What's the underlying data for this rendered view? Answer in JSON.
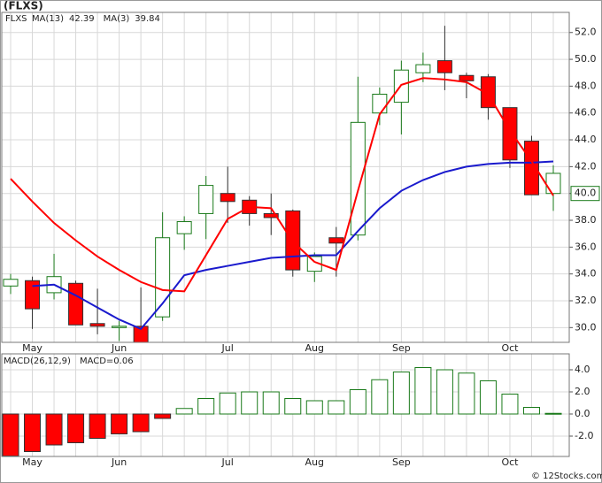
{
  "chart_data": [
    {
      "type": "candlestick",
      "title": "(FLXS)",
      "name": "FLXS",
      "categories": [
        null,
        "May",
        null,
        null,
        null,
        "Jun",
        null,
        null,
        null,
        null,
        "Jul",
        null,
        null,
        null,
        "Aug",
        null,
        null,
        null,
        "Sep",
        null,
        null,
        null,
        null,
        "Oct",
        null,
        null
      ],
      "open": [
        33.1,
        33.5,
        32.6,
        33.3,
        30.3,
        30.0,
        30.1,
        30.8,
        37.0,
        38.5,
        40.0,
        39.5,
        38.5,
        38.7,
        34.2,
        36.7,
        36.9,
        46.0,
        46.8,
        49.0,
        49.9,
        48.8,
        48.7,
        46.4,
        43.9,
        40.0
      ],
      "high": [
        34.0,
        33.8,
        35.5,
        33.5,
        32.9,
        30.5,
        33.0,
        38.6,
        38.3,
        41.3,
        42.0,
        39.8,
        40.0,
        38.8,
        35.6,
        37.5,
        48.7,
        47.9,
        49.9,
        50.5,
        52.5,
        49.0,
        48.9,
        46.4,
        44.3,
        42.1
      ],
      "low": [
        32.5,
        29.9,
        32.1,
        30.2,
        29.5,
        29.0,
        28.9,
        30.5,
        35.8,
        36.6,
        37.8,
        37.6,
        36.9,
        33.8,
        33.4,
        33.8,
        36.5,
        45.1,
        44.4,
        48.3,
        47.7,
        47.1,
        45.5,
        41.9,
        39.9,
        38.7
      ],
      "close": [
        33.6,
        31.4,
        33.8,
        30.2,
        30.1,
        30.1,
        28.9,
        36.7,
        37.9,
        40.6,
        39.4,
        38.5,
        38.2,
        34.3,
        35.3,
        36.3,
        45.3,
        47.4,
        49.2,
        49.6,
        49.0,
        48.4,
        46.4,
        42.5,
        39.9,
        41.5
      ],
      "up_color": "#1a7a1a",
      "down_color": "#ff0000",
      "series": [
        {
          "name": "MA(13)",
          "color": "#1a1acd",
          "value_label": "42.39",
          "values": [
            null,
            33.1,
            33.2,
            32.4,
            31.5,
            30.6,
            29.9,
            31.8,
            33.9,
            34.3,
            34.6,
            34.9,
            35.2,
            35.3,
            35.4,
            35.4,
            37.2,
            38.9,
            40.2,
            41.0,
            41.6,
            42.0,
            42.2,
            42.3,
            42.3,
            42.39
          ]
        },
        {
          "name": "MA(3)",
          "color": "#ff0000",
          "value_label": "39.84",
          "values": [
            41.1,
            39.4,
            37.8,
            36.5,
            35.3,
            34.3,
            33.4,
            32.8,
            32.7,
            35.4,
            38.1,
            39.0,
            38.9,
            36.4,
            34.9,
            34.3,
            40.2,
            45.9,
            48.1,
            48.6,
            48.5,
            48.3,
            47.4,
            44.7,
            42.4,
            39.84
          ]
        }
      ],
      "price_tag": {
        "value": 40.0,
        "label": "40.0"
      },
      "ylim": [
        28.9,
        53.5
      ],
      "yticks": [
        {
          "value": 30,
          "label": "30.0"
        },
        {
          "value": 32,
          "label": "32.0"
        },
        {
          "value": 34,
          "label": "34.0"
        },
        {
          "value": 36,
          "label": "36.0"
        },
        {
          "value": 38,
          "label": "38.0"
        },
        {
          "value": 40,
          "label": "40.0"
        },
        {
          "value": 42,
          "label": "42.0"
        },
        {
          "value": 44,
          "label": "44.0"
        },
        {
          "value": 46,
          "label": "46.0"
        },
        {
          "value": 48,
          "label": "48.0"
        },
        {
          "value": 50,
          "label": "50.0"
        },
        {
          "value": 52,
          "label": "52.0"
        }
      ],
      "grid": true
    },
    {
      "type": "bar",
      "name": "MACD(26,12,9)",
      "legend_label": "MACD=0.06",
      "categories": [
        null,
        "May",
        null,
        null,
        null,
        "Jun",
        null,
        null,
        null,
        null,
        "Jul",
        null,
        null,
        null,
        "Aug",
        null,
        null,
        null,
        "Sep",
        null,
        null,
        null,
        null,
        "Oct",
        null,
        null
      ],
      "values": [
        -3.8,
        -3.4,
        -2.8,
        -2.6,
        -2.2,
        -1.8,
        -1.6,
        -0.4,
        0.5,
        1.4,
        1.9,
        2.0,
        2.0,
        1.4,
        1.2,
        1.2,
        2.2,
        3.1,
        3.8,
        4.2,
        4.0,
        3.7,
        3.0,
        1.8,
        0.6,
        0.06
      ],
      "up_color": "#1a7a1a",
      "down_color": "#ff0000",
      "ylim": [
        -3.84,
        5.44
      ],
      "yticks": [
        {
          "value": -2,
          "label": "-2.0"
        },
        {
          "value": 0,
          "label": "0.0"
        },
        {
          "value": 2,
          "label": "2.0"
        },
        {
          "value": 4,
          "label": "4.0"
        }
      ],
      "grid": true
    }
  ],
  "footer": "© 12Stocks.com"
}
